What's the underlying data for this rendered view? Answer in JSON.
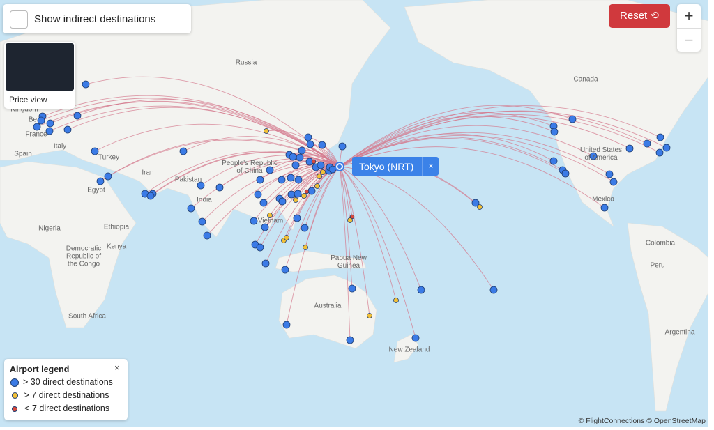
{
  "controls": {
    "indirect_label": "Show indirect destinations",
    "price_view": "Price view",
    "reset": "Reset",
    "zoom_in": "+",
    "zoom_out": "−"
  },
  "popup": {
    "label": "Tokyo (NRT)",
    "close": "×"
  },
  "map_labels": [
    "Russia",
    "Canada",
    "United States of America",
    "Mexico",
    "Colombia",
    "Peru",
    "Argentina",
    "Australia",
    "New Zealand",
    "Papua New Guinea",
    "Kingdom",
    "France",
    "Italy",
    "Spain",
    "Turkey",
    "Egypt",
    "Iran",
    "Pakistan",
    "India",
    "Nigeria",
    "Ethiopia",
    "Kenya",
    "Democratic Republic of the Congo",
    "South Africa",
    "People's Republic of China",
    "Vietnam",
    "Be"
  ],
  "legend": {
    "title": "Airport legend",
    "close": "×",
    "items": [
      "> 30 direct destinations",
      "> 7 direct destinations",
      "< 7 direct destinations"
    ]
  },
  "attribution": "© FlightConnections © OpenStreetMap"
}
